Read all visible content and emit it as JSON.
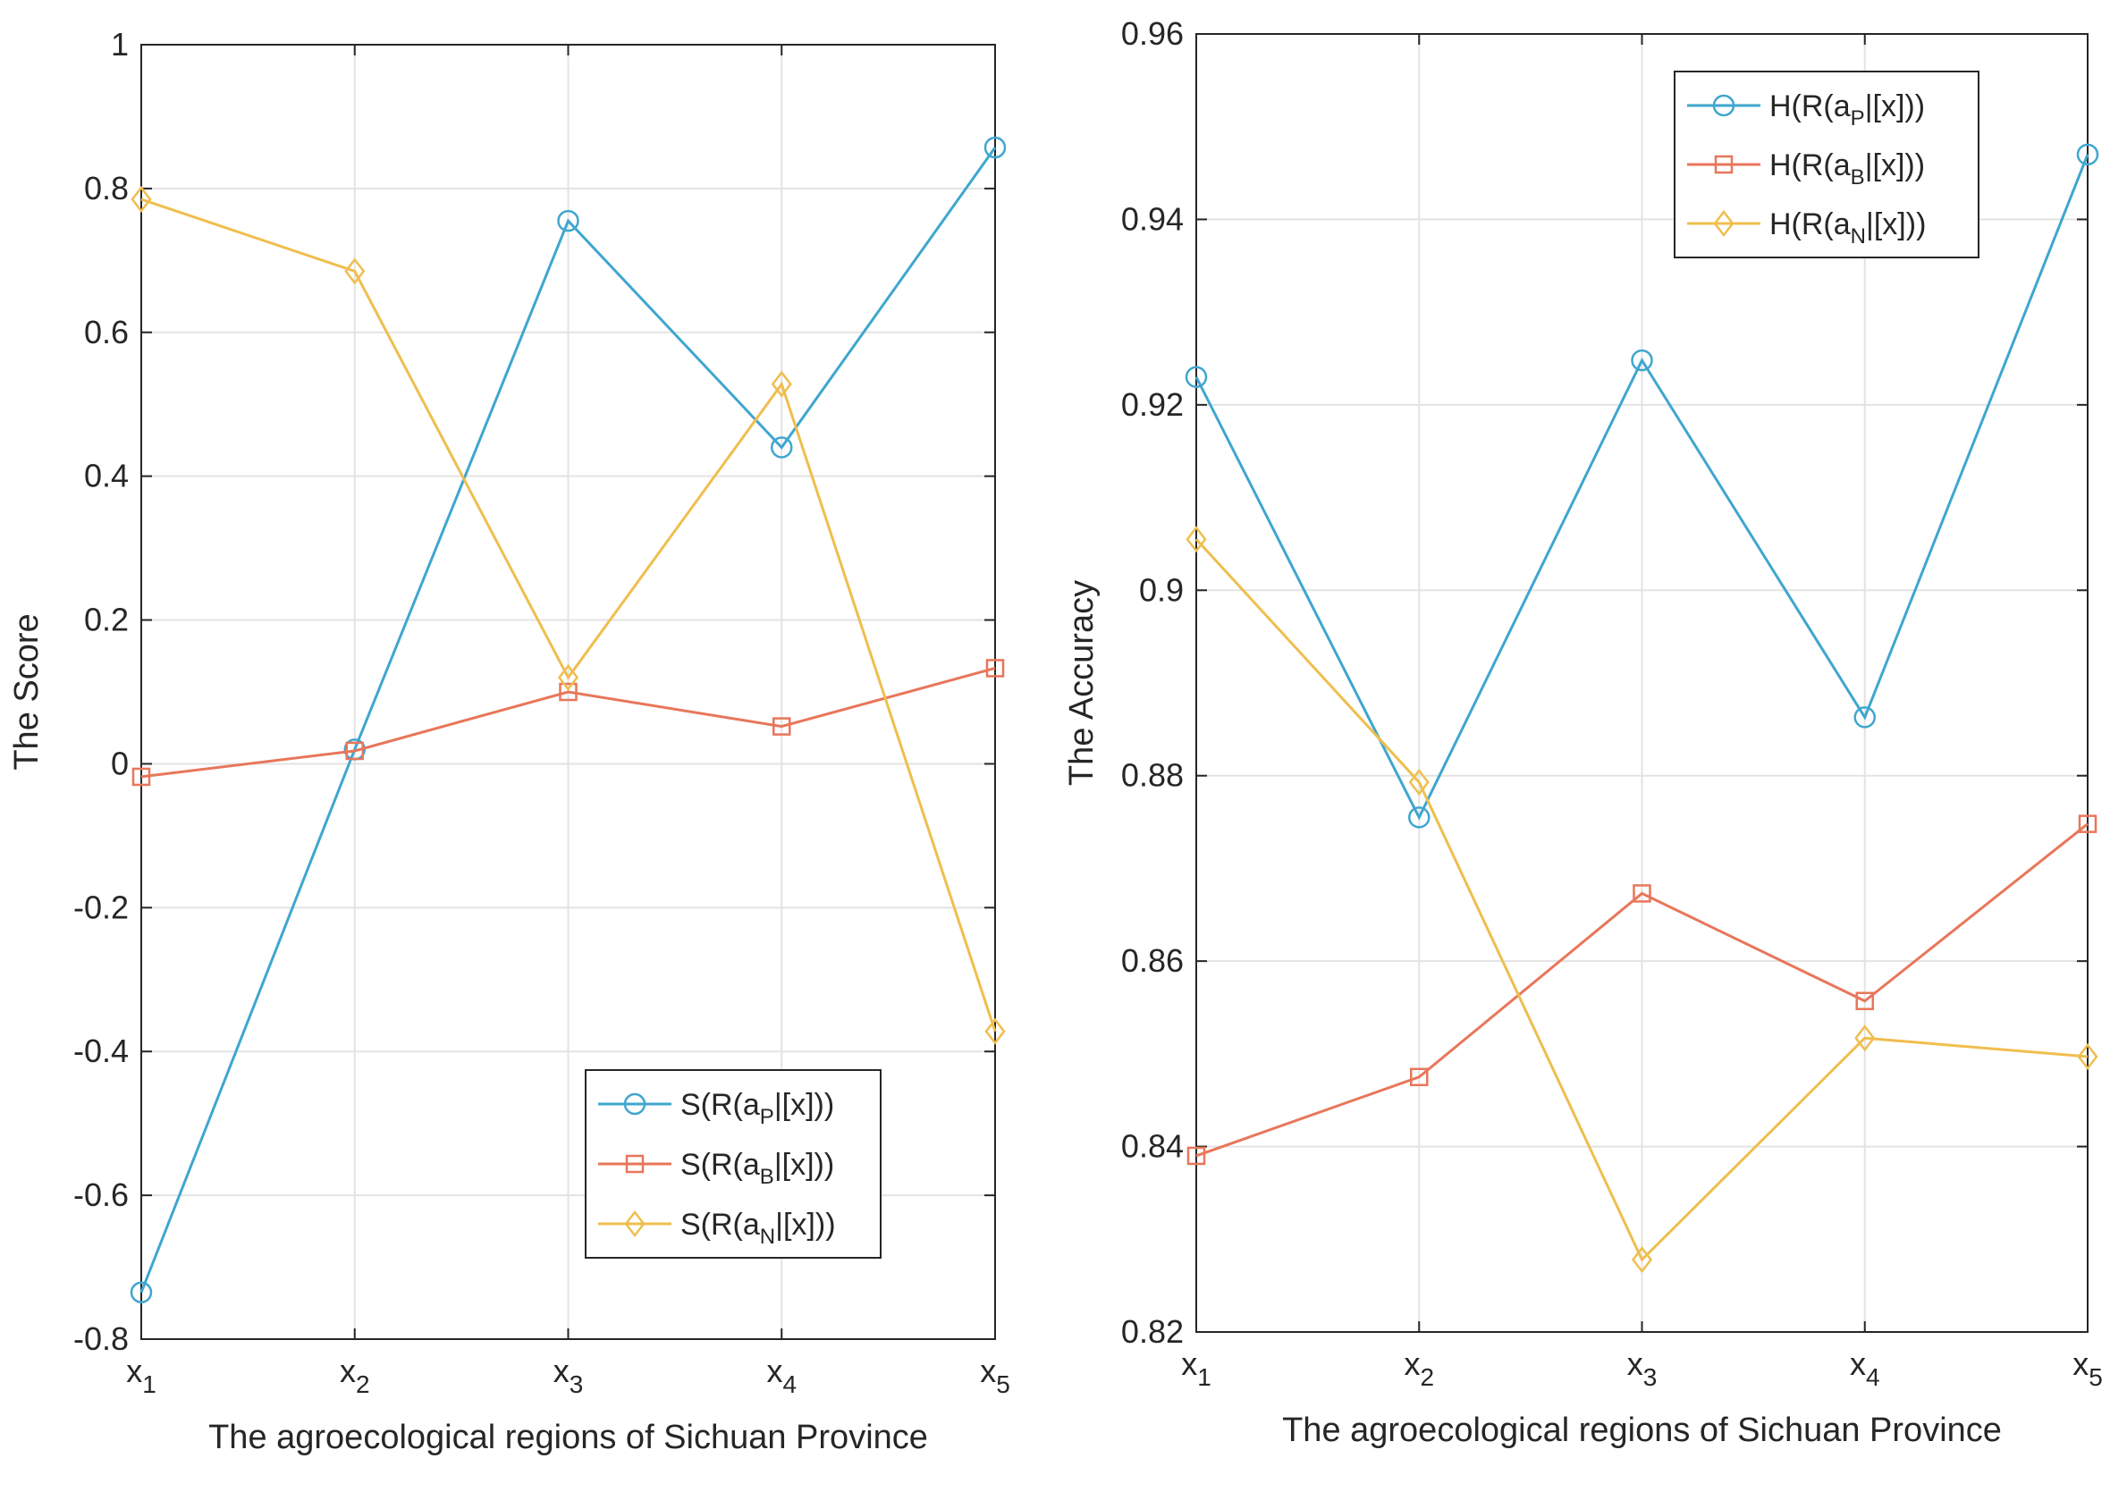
{
  "chart_data": [
    {
      "type": "line",
      "categories": [
        "x1",
        "x2",
        "x3",
        "x4",
        "x5"
      ],
      "category_labels": [
        {
          "base": "x",
          "sub": "1"
        },
        {
          "base": "x",
          "sub": "2"
        },
        {
          "base": "x",
          "sub": "3"
        },
        {
          "base": "x",
          "sub": "4"
        },
        {
          "base": "x",
          "sub": "5"
        }
      ],
      "xlabel": "The agroecological regions of Sichuan Province",
      "ylabel": "The Score",
      "ylim": [
        -0.8,
        1
      ],
      "yticks": [
        1,
        0.8,
        0.6,
        0.4,
        0.2,
        0,
        -0.2,
        -0.4,
        -0.6,
        -0.8
      ],
      "ytick_labels": [
        "1",
        "0.8",
        "0.6",
        "0.4",
        "0.2",
        "0",
        "-0.2",
        "-0.4",
        "-0.6",
        "-0.8"
      ],
      "grid": true,
      "legend_position": "bottom-right",
      "series": [
        {
          "name": "S(R(aP|[x]))",
          "legend_main": "S(R(a",
          "legend_sub": "P",
          "legend_tail": "|[x]))",
          "color": "#3FA6CF",
          "marker": "circle",
          "values": [
            -0.735,
            0.02,
            0.755,
            0.44,
            0.857
          ]
        },
        {
          "name": "S(R(aB|[x]))",
          "legend_main": "S(R(a",
          "legend_sub": "B",
          "legend_tail": "|[x]))",
          "color": "#E8765A",
          "marker": "square",
          "values": [
            -0.018,
            0.018,
            0.1,
            0.052,
            0.133
          ]
        },
        {
          "name": "S(R(aN|[x]))",
          "legend_main": "S(R(a",
          "legend_sub": "N",
          "legend_tail": "|[x]))",
          "color": "#EFBE4E",
          "marker": "diamond",
          "values": [
            0.785,
            0.685,
            0.12,
            0.528,
            -0.372
          ]
        }
      ]
    },
    {
      "type": "line",
      "categories": [
        "x1",
        "x2",
        "x3",
        "x4",
        "x5"
      ],
      "category_labels": [
        {
          "base": "x",
          "sub": "1"
        },
        {
          "base": "x",
          "sub": "2"
        },
        {
          "base": "x",
          "sub": "3"
        },
        {
          "base": "x",
          "sub": "4"
        },
        {
          "base": "x",
          "sub": "5"
        }
      ],
      "xlabel": "The agroecological regions of Sichuan Province",
      "ylabel": "The Accuracy",
      "ylim": [
        0.82,
        0.96
      ],
      "yticks": [
        0.96,
        0.94,
        0.92,
        0.9,
        0.88,
        0.86,
        0.84,
        0.82
      ],
      "ytick_labels": [
        "0.96",
        "0.94",
        "0.92",
        "0.9",
        "0.88",
        "0.86",
        "0.84",
        "0.82"
      ],
      "grid": true,
      "legend_position": "top-right",
      "series": [
        {
          "name": "H(R(aP|[x]))",
          "legend_main": "H(R(a",
          "legend_sub": "P",
          "legend_tail": "|[x]))",
          "color": "#3FA6CF",
          "marker": "circle",
          "values": [
            0.923,
            0.8755,
            0.9248,
            0.8863,
            0.947
          ]
        },
        {
          "name": "H(R(aB|[x]))",
          "legend_main": "H(R(a",
          "legend_sub": "B",
          "legend_tail": "|[x]))",
          "color": "#E8765A",
          "marker": "square",
          "values": [
            0.839,
            0.8475,
            0.8673,
            0.8557,
            0.8748
          ]
        },
        {
          "name": "H(R(aN|[x]))",
          "legend_main": "H(R(a",
          "legend_sub": "N",
          "legend_tail": "|[x]))",
          "color": "#EFBE4E",
          "marker": "diamond",
          "values": [
            0.9055,
            0.8793,
            0.8278,
            0.8517,
            0.8497
          ]
        }
      ]
    }
  ]
}
